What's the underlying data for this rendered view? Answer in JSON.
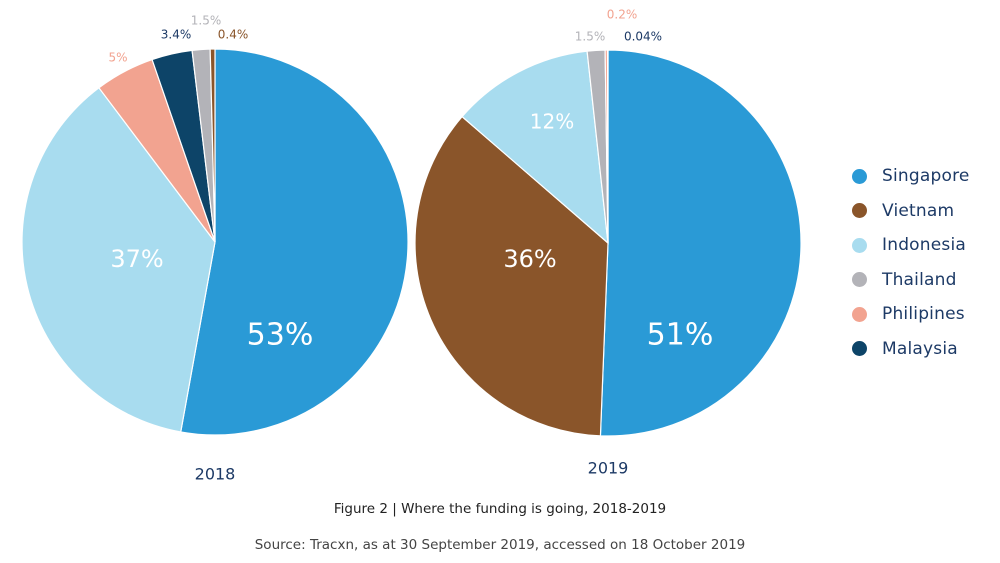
{
  "chart_data": [
    {
      "type": "pie",
      "title": "2018",
      "slices": [
        {
          "label": "Singapore",
          "value": 53,
          "display": "53%"
        },
        {
          "label": "Indonesia",
          "value": 37,
          "display": "37%"
        },
        {
          "label": "Philipines",
          "value": 5,
          "display": "5%"
        },
        {
          "label": "Malaysia",
          "value": 3.4,
          "display": "3.4%"
        },
        {
          "label": "Thailand",
          "value": 1.5,
          "display": "1.5%"
        },
        {
          "label": "Vietnam",
          "value": 0.4,
          "display": "0.4%"
        }
      ]
    },
    {
      "type": "pie",
      "title": "2019",
      "slices": [
        {
          "label": "Singapore",
          "value": 51,
          "display": "51%"
        },
        {
          "label": "Vietnam",
          "value": 36,
          "display": "36%"
        },
        {
          "label": "Indonesia",
          "value": 12,
          "display": "12%"
        },
        {
          "label": "Thailand",
          "value": 1.5,
          "display": "1.5%"
        },
        {
          "label": "Philipines",
          "value": 0.2,
          "display": "0.2%"
        },
        {
          "label": "Malaysia",
          "value": 0.04,
          "display": "0.04%"
        }
      ]
    }
  ],
  "legend": {
    "placement": "right",
    "items": [
      {
        "label": "Singapore",
        "color": "#2a9ad6"
      },
      {
        "label": "Vietnam",
        "color": "#8a552a"
      },
      {
        "label": "Indonesia",
        "color": "#a8dcef"
      },
      {
        "label": "Thailand",
        "color": "#b3b3b8"
      },
      {
        "label": "Philipines",
        "color": "#f2a390"
      },
      {
        "label": "Malaysia",
        "color": "#0d4468"
      }
    ]
  },
  "caption": {
    "title": "Figure 2 | Where the funding is going, 2018-2019",
    "source": "Source: Tracxn, as at 30 September 2019, accessed on 18 October 2019"
  }
}
